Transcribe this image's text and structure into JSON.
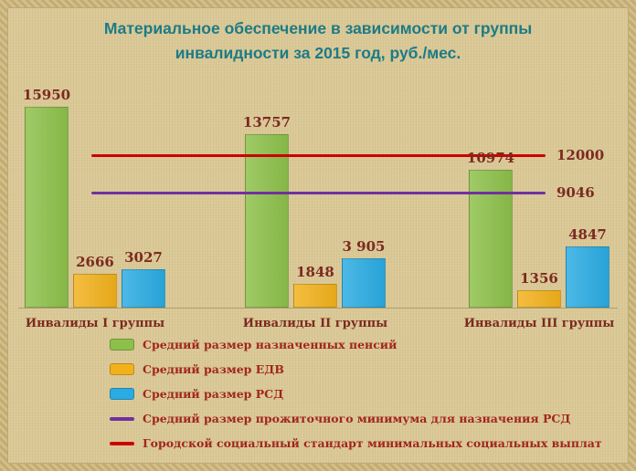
{
  "chart_data": {
    "type": "bar",
    "title": "Материальное обеспечение в зависимости от группы инвалидности за 2015 год, руб./мес.",
    "title_lines": [
      "Материальное обеспечение в зависимости от группы",
      "инвалидности за 2015 год, руб./мес."
    ],
    "categories": [
      "Инвалиды I группы",
      "Инвалиды II группы",
      "Инвалиды III группы"
    ],
    "series": [
      {
        "name": "Средний размер назначенных пенсий",
        "color": "#8dc04a",
        "values": [
          15950,
          13757,
          10974
        ],
        "labels": [
          "15950",
          "13757",
          "10974"
        ]
      },
      {
        "name": "Средний размер ЕДВ",
        "color": "#f2b11c",
        "values": [
          2666,
          1848,
          1356
        ],
        "labels": [
          "2666",
          "1848",
          "1356"
        ]
      },
      {
        "name": "Средний размер РСД",
        "color": "#2aabe2",
        "values": [
          3027,
          3905,
          4847
        ],
        "labels": [
          "3027",
          "3 905",
          "4847"
        ]
      }
    ],
    "reference_lines": [
      {
        "name": "Средний размер прожиточного минимума для назначения РСД",
        "value": 9046,
        "label": "9046",
        "color": "#7030a0"
      },
      {
        "name": "Городской социальный стандарт минимальных социальных выплат",
        "value": 12000,
        "label": "12000",
        "color": "#cc0000"
      }
    ],
    "ylim": [
      0,
      16500
    ],
    "xlabel": "",
    "ylabel": "",
    "grid": false,
    "legend_position": "bottom",
    "colors": {
      "background": "#dac896",
      "frame": "#c3ac74",
      "title_text": "#1c7b85",
      "value_text": "#7c2a21",
      "legend_text": "#a1261d"
    }
  }
}
